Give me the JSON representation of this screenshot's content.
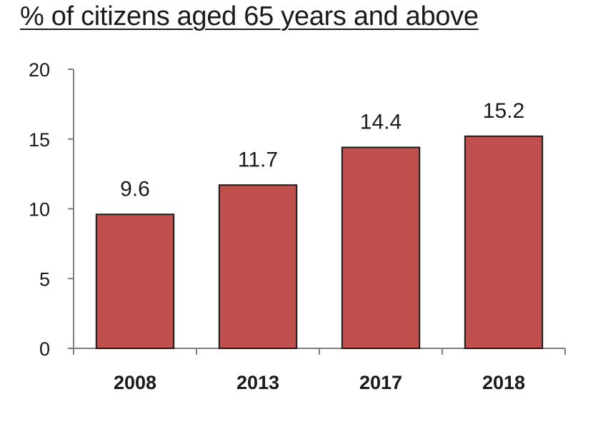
{
  "chart_data": {
    "type": "bar",
    "title": "% of citizens aged 65 years and above",
    "categories": [
      "2008",
      "2013",
      "2017",
      "2018"
    ],
    "values": [
      9.6,
      11.7,
      14.4,
      15.2
    ],
    "data_labels": [
      "9.6",
      "11.7",
      "14.4",
      "15.2"
    ],
    "ylim": [
      0,
      20
    ],
    "yticks": [
      0,
      5,
      10,
      15,
      20
    ],
    "ytick_labels": [
      "0",
      "5",
      "10",
      "15",
      "20"
    ],
    "xlabel": "",
    "ylabel": "",
    "grid": false,
    "legend": "none",
    "colors": {
      "bar_fill": "#c0504d",
      "bar_stroke": "#1a1a1a",
      "axis": "#7f7f7f",
      "text": "#1a1a1a"
    }
  }
}
